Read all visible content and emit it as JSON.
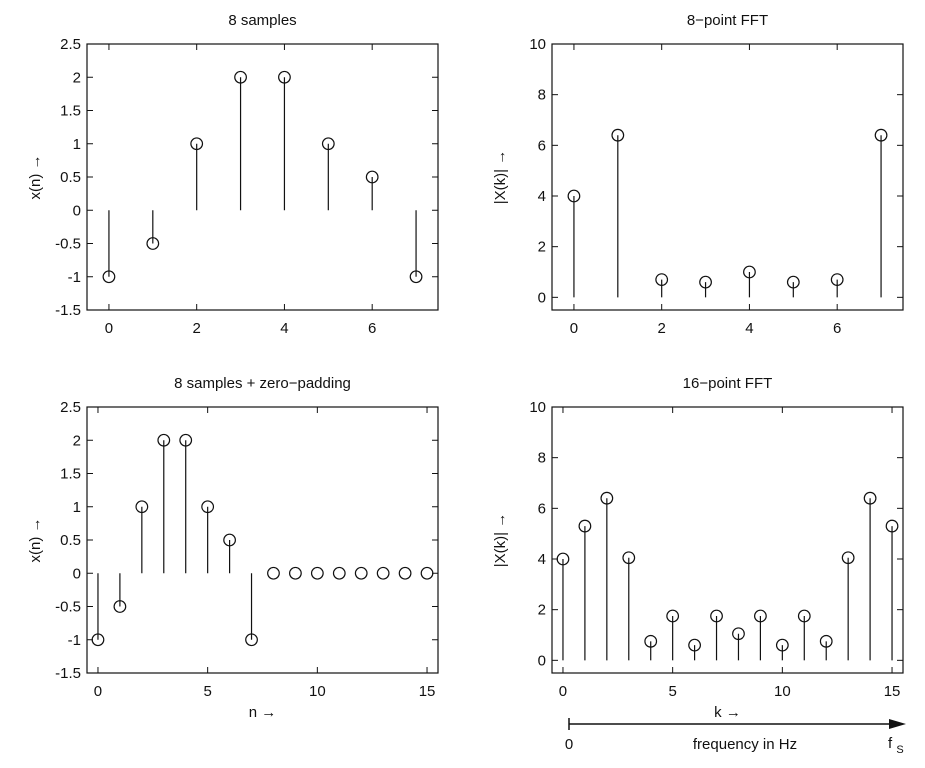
{
  "chart_data": [
    {
      "id": "samples8",
      "type": "scatter",
      "title": "8 samples",
      "xlabel": "",
      "ylabel": "x(n) →",
      "x": [
        0,
        1,
        2,
        3,
        4,
        5,
        6,
        7
      ],
      "y": [
        -1,
        -0.5,
        1,
        2,
        2,
        1,
        0.5,
        -1
      ],
      "xlim": [
        -0.5,
        7.5
      ],
      "ylim": [
        -1.5,
        2.5
      ],
      "xticks": [
        0,
        2,
        4,
        6
      ],
      "yticks": [
        -1.5,
        -1,
        -0.5,
        0,
        0.5,
        1,
        1.5,
        2,
        2.5
      ],
      "xtick_labels": [
        "0",
        "2",
        "4",
        "6"
      ],
      "ytick_labels": [
        "-1.5",
        "-1",
        "-0.5",
        "0",
        "0.5",
        "1",
        "1.5",
        "2",
        "2.5"
      ]
    },
    {
      "id": "fft8",
      "type": "scatter",
      "title": "8−point FFT",
      "xlabel": "",
      "ylabel": "|X(k)| →",
      "x": [
        0,
        1,
        2,
        3,
        4,
        5,
        6,
        7
      ],
      "y": [
        4,
        6.4,
        0.7,
        0.6,
        1,
        0.6,
        0.7,
        6.4
      ],
      "xlim": [
        -0.5,
        7.5
      ],
      "ylim": [
        -0.5,
        10
      ],
      "xticks": [
        0,
        2,
        4,
        6
      ],
      "yticks": [
        0,
        2,
        4,
        6,
        8,
        10
      ],
      "xtick_labels": [
        "0",
        "2",
        "4",
        "6"
      ],
      "ytick_labels": [
        "0",
        "2",
        "4",
        "6",
        "8",
        "10"
      ]
    },
    {
      "id": "samples16",
      "type": "scatter",
      "title": "8 samples + zero−padding",
      "xlabel": "n →",
      "ylabel": "x(n) →",
      "x": [
        0,
        1,
        2,
        3,
        4,
        5,
        6,
        7,
        8,
        9,
        10,
        11,
        12,
        13,
        14,
        15
      ],
      "y": [
        -1,
        -0.5,
        1,
        2,
        2,
        1,
        0.5,
        -1,
        0,
        0,
        0,
        0,
        0,
        0,
        0,
        0
      ],
      "xlim": [
        -0.5,
        15.5
      ],
      "ylim": [
        -1.5,
        2.5
      ],
      "xticks": [
        0,
        5,
        10,
        15
      ],
      "yticks": [
        -1.5,
        -1,
        -0.5,
        0,
        0.5,
        1,
        1.5,
        2,
        2.5
      ],
      "xtick_labels": [
        "0",
        "5",
        "10",
        "15"
      ],
      "ytick_labels": [
        "-1.5",
        "-1",
        "-0.5",
        "0",
        "0.5",
        "1",
        "1.5",
        "2",
        "2.5"
      ]
    },
    {
      "id": "fft16",
      "type": "scatter",
      "title": "16−point FFT",
      "xlabel": "k →",
      "ylabel": "|X(k)| →",
      "x": [
        0,
        1,
        2,
        3,
        4,
        5,
        6,
        7,
        8,
        9,
        10,
        11,
        12,
        13,
        14,
        15
      ],
      "y": [
        4,
        5.3,
        6.4,
        4.05,
        0.75,
        1.75,
        0.6,
        1.75,
        1.05,
        1.75,
        0.6,
        1.75,
        0.75,
        4.05,
        6.4,
        5.3
      ],
      "xlim": [
        -0.5,
        15.5
      ],
      "ylim": [
        -0.5,
        10
      ],
      "xticks": [
        0,
        5,
        10,
        15
      ],
      "yticks": [
        0,
        2,
        4,
        6,
        8,
        10
      ],
      "xtick_labels": [
        "0",
        "5",
        "10",
        "15"
      ],
      "ytick_labels": [
        "0",
        "2",
        "4",
        "6",
        "8",
        "10"
      ]
    }
  ],
  "frequency_axis": {
    "start_label": "0",
    "center_label": "frequency in Hz",
    "end_label": "f",
    "end_subscript": "S"
  }
}
